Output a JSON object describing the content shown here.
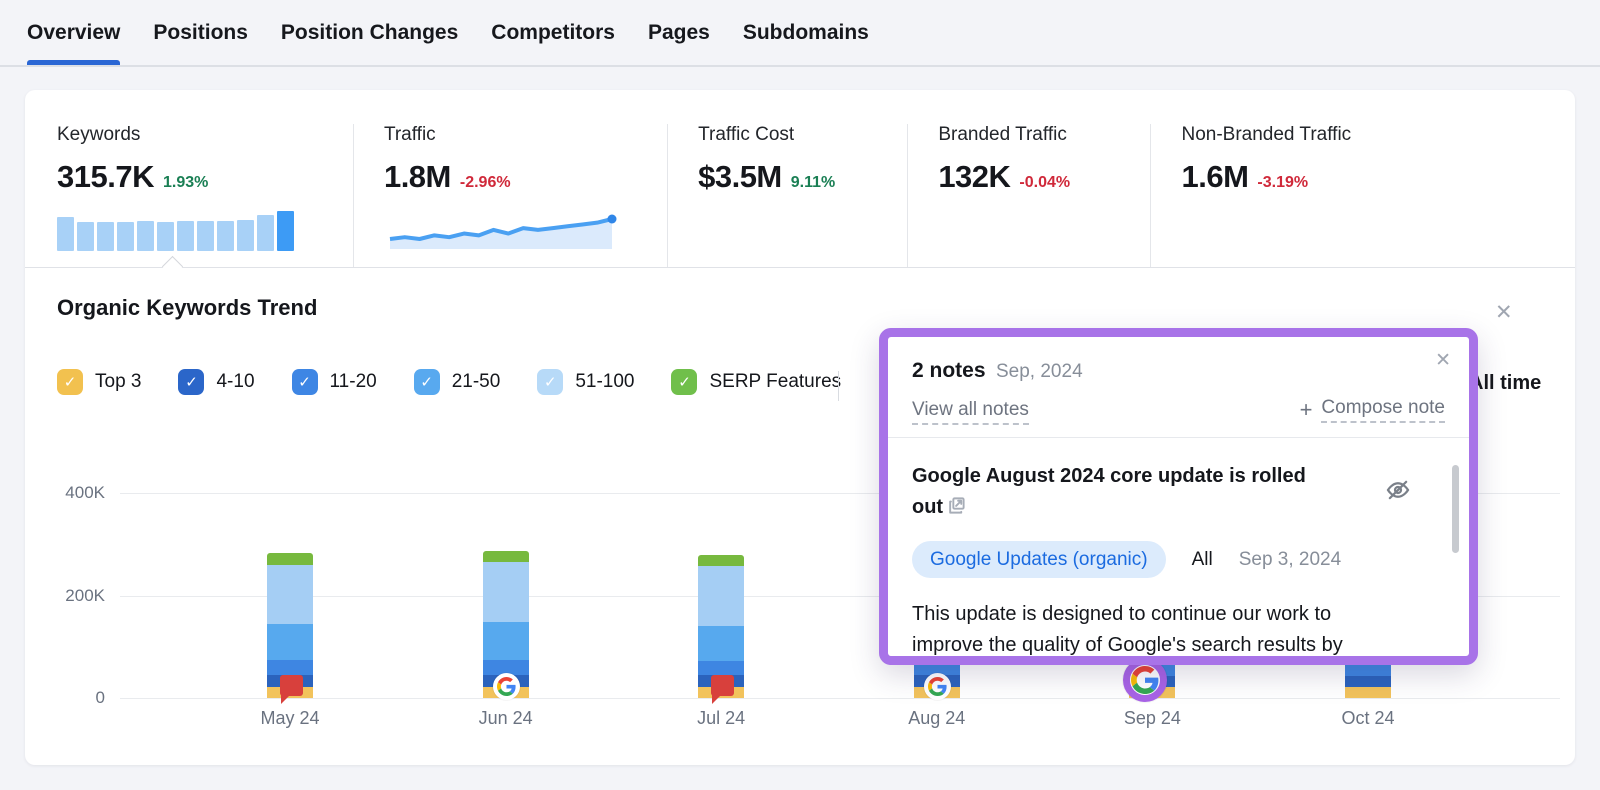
{
  "icons": {
    "close": "✕",
    "plus": "+",
    "check": "✓"
  },
  "tabs": [
    {
      "label": "Overview",
      "active": true
    },
    {
      "label": "Positions",
      "active": false
    },
    {
      "label": "Position Changes",
      "active": false
    },
    {
      "label": "Competitors",
      "active": false
    },
    {
      "label": "Pages",
      "active": false
    },
    {
      "label": "Subdomains",
      "active": false
    }
  ],
  "tab_accent_color": "#2a66d4",
  "metrics": [
    {
      "label": "Keywords",
      "value": "315.7K",
      "delta": "1.93%",
      "sparkline_type": "bars",
      "sparkline": [
        34,
        29,
        29,
        29,
        30,
        29,
        30,
        30,
        30,
        31,
        36,
        40
      ],
      "bar_color": "#a8d1f7",
      "bar_color_last": "#3d9bf5"
    },
    {
      "label": "Traffic",
      "value": "1.8M",
      "delta": "-2.96%",
      "sparkline_type": "line",
      "sparkline": [
        22,
        22.5,
        22,
        23,
        22.5,
        23.5,
        23,
        24.5,
        23.5,
        25,
        24.5,
        25,
        25.5,
        26,
        26.5,
        27.5
      ],
      "line_color": "#4aa0f2",
      "fill_color": "#dbeafc",
      "dot_color": "#2f86e8"
    },
    {
      "label": "Traffic Cost",
      "value": "$3.5M",
      "delta": "9.11%"
    },
    {
      "label": "Branded Traffic",
      "value": "132K",
      "delta": "-0.04%"
    },
    {
      "label": "Non-Branded Traffic",
      "value": "1.6M",
      "delta": "-3.19%"
    }
  ],
  "delta_colors": {
    "up": "#1a7f54",
    "down": "#d0293a"
  },
  "section": {
    "title": "Organic Keywords Trend",
    "time_range": "All time"
  },
  "filters": [
    {
      "label": "Top 3",
      "color": "#f2c14f",
      "checked": true
    },
    {
      "label": "4-10",
      "color": "#2b66c9",
      "checked": true
    },
    {
      "label": "11-20",
      "color": "#3e86e4",
      "checked": true
    },
    {
      "label": "21-50",
      "color": "#58a9ef",
      "checked": true
    },
    {
      "label": "51-100",
      "color": "#b7daf8",
      "checked": true
    },
    {
      "label": "SERP Features",
      "color": "#70bf4b",
      "checked": true
    }
  ],
  "chart_data": {
    "type": "bar",
    "stacked": true,
    "title": "Organic Keywords Trend",
    "unit": "keywords (thousands)",
    "categories": [
      "May 24",
      "Jun 24",
      "Jul 24",
      "Aug 24",
      "Sep 24",
      "Oct 24"
    ],
    "series": [
      {
        "name": "Top 3",
        "color": "#f2c35c",
        "values": [
          22,
          22,
          22,
          22,
          21,
          21
        ]
      },
      {
        "name": "4-10",
        "color": "#2b63bd",
        "values": [
          22,
          23,
          22,
          22,
          21,
          21
        ]
      },
      {
        "name": "11-20",
        "color": "#3e86e2",
        "values": [
          30,
          30,
          28,
          29,
          28,
          28
        ]
      },
      {
        "name": "21-50",
        "color": "#57a9ee",
        "values": [
          70,
          73,
          69,
          71,
          67,
          66
        ]
      },
      {
        "name": "51-100",
        "color": "#a5cef4",
        "values": [
          116,
          118,
          117,
          118,
          113,
          112
        ]
      },
      {
        "name": "SERP Features",
        "color": "#77b93e",
        "values": [
          22,
          21,
          22,
          21,
          20,
          20
        ]
      }
    ],
    "ylim": [
      0,
      400
    ],
    "yticks": [
      {
        "label": "400K",
        "value": 400
      },
      {
        "label": "200K",
        "value": 200
      },
      {
        "label": "0",
        "value": 0
      }
    ],
    "grid": true,
    "legend_position": "top",
    "markers": [
      {
        "month": "May 24",
        "type": "note-flag"
      },
      {
        "month": "Jun 24",
        "type": "google-update"
      },
      {
        "month": "Jul 24",
        "type": "note-flag"
      },
      {
        "month": "Aug 24",
        "type": "google-update"
      },
      {
        "month": "Sep 24",
        "type": "google-update-selected"
      }
    ],
    "marker_colors": {
      "note_flag": "#d8403c",
      "selected_ring": "#a863e6"
    }
  },
  "notes_popup": {
    "count_label": "2 notes",
    "period": "Sep, 2024",
    "view_all_label": "View all notes",
    "compose_label": "Compose note",
    "border_color": "#a873e8",
    "note": {
      "title": "Google August 2024 core update is rolled out",
      "tag": "Google Updates (organic)",
      "scope": "All",
      "date": "Sep 3, 2024",
      "body": "This update is designed to continue our work to improve the quality of Google's search results by"
    }
  }
}
